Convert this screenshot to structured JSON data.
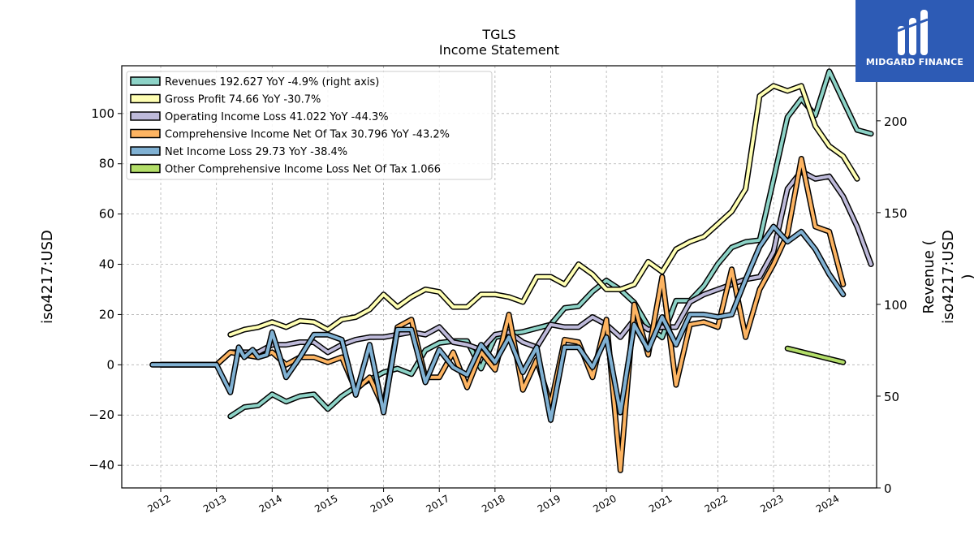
{
  "chart_data": {
    "type": "line",
    "title": "TGLS",
    "subtitle": "Income Statement",
    "ylabel": "iso4217:USD",
    "y2label": "Revenue (\niso4217:USD\n)",
    "ylim": [
      -49,
      119
    ],
    "y2lim": [
      0,
      230
    ],
    "xlim": [
      2011.3,
      2024.85
    ],
    "yticks": [
      -40,
      -20,
      0,
      20,
      40,
      60,
      80,
      100
    ],
    "y2ticks": [
      0,
      50,
      100,
      150,
      200
    ],
    "xticks": [
      "2012",
      "2013",
      "2014",
      "2015",
      "2016",
      "2017",
      "2018",
      "2019",
      "2020",
      "2021",
      "2022",
      "2023",
      "2024"
    ],
    "grid": true,
    "legend_position": "top-left",
    "series": [
      {
        "name": "Revenues  192.627 YoY -4.9% (right axis)",
        "color": "#8dd3c7",
        "axis": "right",
        "points": [
          [
            2013.25,
            39
          ],
          [
            2013.5,
            44
          ],
          [
            2013.75,
            45
          ],
          [
            2014.0,
            51
          ],
          [
            2014.25,
            47
          ],
          [
            2014.5,
            50
          ],
          [
            2014.75,
            51
          ],
          [
            2015.0,
            43
          ],
          [
            2015.25,
            50
          ],
          [
            2015.5,
            55
          ],
          [
            2015.75,
            59
          ],
          [
            2016.0,
            63
          ],
          [
            2016.25,
            65
          ],
          [
            2016.5,
            62
          ],
          [
            2016.75,
            75
          ],
          [
            2017.0,
            79
          ],
          [
            2017.25,
            80
          ],
          [
            2017.5,
            80
          ],
          [
            2017.75,
            65
          ],
          [
            2018.0,
            82
          ],
          [
            2018.25,
            84
          ],
          [
            2018.5,
            85
          ],
          [
            2018.75,
            87
          ],
          [
            2019.0,
            89
          ],
          [
            2019.25,
            98
          ],
          [
            2019.5,
            99
          ],
          [
            2019.75,
            107
          ],
          [
            2020.0,
            113
          ],
          [
            2020.25,
            108
          ],
          [
            2020.5,
            101
          ],
          [
            2020.75,
            88
          ],
          [
            2021.0,
            82
          ],
          [
            2021.25,
            102
          ],
          [
            2021.5,
            102
          ],
          [
            2021.75,
            110
          ],
          [
            2022.0,
            122
          ],
          [
            2022.25,
            131
          ],
          [
            2022.5,
            134
          ],
          [
            2022.75,
            135
          ],
          [
            2023.0,
            168
          ],
          [
            2023.25,
            202
          ],
          [
            2023.5,
            212
          ],
          [
            2023.75,
            203
          ],
          [
            2024.0,
            227
          ],
          [
            2024.25,
            211
          ],
          [
            2024.5,
            195
          ],
          [
            2024.75,
            193
          ]
        ]
      },
      {
        "name": "Gross Profit  74.66 YoY -30.7%",
        "color": "#ffffb3",
        "axis": "left",
        "points": [
          [
            2013.25,
            12
          ],
          [
            2013.5,
            14
          ],
          [
            2013.75,
            15
          ],
          [
            2014.0,
            17
          ],
          [
            2014.25,
            15
          ],
          [
            2014.5,
            17.5
          ],
          [
            2014.75,
            17
          ],
          [
            2015.0,
            14
          ],
          [
            2015.25,
            18
          ],
          [
            2015.5,
            19
          ],
          [
            2015.75,
            22
          ],
          [
            2016.0,
            28
          ],
          [
            2016.25,
            23
          ],
          [
            2016.5,
            27
          ],
          [
            2016.75,
            30
          ],
          [
            2017.0,
            29
          ],
          [
            2017.25,
            23
          ],
          [
            2017.5,
            23
          ],
          [
            2017.75,
            28
          ],
          [
            2018.0,
            28
          ],
          [
            2018.25,
            27
          ],
          [
            2018.5,
            25
          ],
          [
            2018.75,
            35
          ],
          [
            2019.0,
            35
          ],
          [
            2019.25,
            32
          ],
          [
            2019.5,
            40
          ],
          [
            2019.75,
            36
          ],
          [
            2020.0,
            30
          ],
          [
            2020.25,
            30
          ],
          [
            2020.5,
            32
          ],
          [
            2020.75,
            41
          ],
          [
            2021.0,
            37
          ],
          [
            2021.25,
            46
          ],
          [
            2021.5,
            49
          ],
          [
            2021.75,
            51
          ],
          [
            2022.0,
            56
          ],
          [
            2022.25,
            61
          ],
          [
            2022.5,
            70
          ],
          [
            2022.75,
            107
          ],
          [
            2023.0,
            111
          ],
          [
            2023.25,
            109
          ],
          [
            2023.5,
            111
          ],
          [
            2023.75,
            95
          ],
          [
            2024.0,
            87
          ],
          [
            2024.25,
            83
          ],
          [
            2024.5,
            74
          ]
        ]
      },
      {
        "name": "Operating Income Loss  41.022 YoY -44.3%",
        "color": "#bebada",
        "axis": "left",
        "points": [
          [
            2012.0,
            0
          ],
          [
            2012.5,
            0
          ],
          [
            2013.0,
            0
          ],
          [
            2013.25,
            5
          ],
          [
            2013.5,
            5
          ],
          [
            2013.75,
            5
          ],
          [
            2014.0,
            8
          ],
          [
            2014.25,
            8
          ],
          [
            2014.5,
            9
          ],
          [
            2014.75,
            9
          ],
          [
            2015.0,
            5
          ],
          [
            2015.25,
            8
          ],
          [
            2015.5,
            10
          ],
          [
            2015.75,
            11
          ],
          [
            2016.0,
            11
          ],
          [
            2016.25,
            12
          ],
          [
            2016.5,
            13
          ],
          [
            2016.75,
            12
          ],
          [
            2017.0,
            15
          ],
          [
            2017.25,
            9
          ],
          [
            2017.5,
            8
          ],
          [
            2017.75,
            6
          ],
          [
            2018.0,
            12
          ],
          [
            2018.25,
            13
          ],
          [
            2018.5,
            9
          ],
          [
            2018.75,
            7
          ],
          [
            2019.0,
            16
          ],
          [
            2019.25,
            15
          ],
          [
            2019.5,
            15
          ],
          [
            2019.75,
            19
          ],
          [
            2020.0,
            16
          ],
          [
            2020.25,
            11
          ],
          [
            2020.5,
            18
          ],
          [
            2020.75,
            14
          ],
          [
            2021.0,
            15
          ],
          [
            2021.25,
            15
          ],
          [
            2021.5,
            25
          ],
          [
            2021.75,
            28
          ],
          [
            2022.0,
            30
          ],
          [
            2022.25,
            32
          ],
          [
            2022.5,
            34
          ],
          [
            2022.75,
            35
          ],
          [
            2023.0,
            45
          ],
          [
            2023.25,
            70
          ],
          [
            2023.5,
            77
          ],
          [
            2023.75,
            74
          ],
          [
            2024.0,
            75
          ],
          [
            2024.25,
            67
          ],
          [
            2024.5,
            55
          ],
          [
            2024.75,
            40
          ]
        ]
      },
      {
        "name": "Comprehensive Income Net Of Tax  30.796 YoY -43.2%",
        "color": "#fdb462",
        "axis": "left",
        "points": [
          [
            2012.0,
            0
          ],
          [
            2012.5,
            0
          ],
          [
            2013.0,
            0
          ],
          [
            2013.25,
            5
          ],
          [
            2013.5,
            4
          ],
          [
            2013.75,
            3
          ],
          [
            2014.0,
            5
          ],
          [
            2014.25,
            0
          ],
          [
            2014.5,
            3
          ],
          [
            2014.75,
            3
          ],
          [
            2015.0,
            1
          ],
          [
            2015.25,
            3
          ],
          [
            2015.5,
            -10
          ],
          [
            2015.75,
            -5
          ],
          [
            2016.0,
            -17
          ],
          [
            2016.25,
            15
          ],
          [
            2016.5,
            18
          ],
          [
            2016.75,
            -5
          ],
          [
            2017.0,
            -5
          ],
          [
            2017.25,
            5
          ],
          [
            2017.5,
            -9
          ],
          [
            2017.75,
            5
          ],
          [
            2018.0,
            -2
          ],
          [
            2018.25,
            20
          ],
          [
            2018.5,
            -10
          ],
          [
            2018.75,
            2
          ],
          [
            2019.0,
            -16
          ],
          [
            2019.25,
            10
          ],
          [
            2019.5,
            9
          ],
          [
            2019.75,
            -5
          ],
          [
            2020.0,
            18
          ],
          [
            2020.25,
            -42
          ],
          [
            2020.5,
            24
          ],
          [
            2020.75,
            4
          ],
          [
            2021.0,
            35
          ],
          [
            2021.25,
            -8
          ],
          [
            2021.5,
            16
          ],
          [
            2021.75,
            17
          ],
          [
            2022.0,
            15
          ],
          [
            2022.25,
            38
          ],
          [
            2022.5,
            11
          ],
          [
            2022.75,
            30
          ],
          [
            2023.0,
            40
          ],
          [
            2023.25,
            52
          ],
          [
            2023.5,
            82
          ],
          [
            2023.75,
            55
          ],
          [
            2024.0,
            53
          ],
          [
            2024.25,
            32
          ]
        ]
      },
      {
        "name": "Net Income Loss  29.73 YoY -38.4%",
        "color": "#80b1d3",
        "axis": "left",
        "points": [
          [
            2011.85,
            0
          ],
          [
            2012.5,
            0
          ],
          [
            2013.0,
            0
          ],
          [
            2013.25,
            -11
          ],
          [
            2013.4,
            7
          ],
          [
            2013.5,
            3
          ],
          [
            2013.65,
            6
          ],
          [
            2013.75,
            3
          ],
          [
            2013.9,
            4
          ],
          [
            2014.0,
            13
          ],
          [
            2014.25,
            -5
          ],
          [
            2014.5,
            3
          ],
          [
            2014.75,
            12
          ],
          [
            2015.0,
            12
          ],
          [
            2015.25,
            10
          ],
          [
            2015.5,
            -12
          ],
          [
            2015.75,
            8
          ],
          [
            2016.0,
            -19
          ],
          [
            2016.25,
            14
          ],
          [
            2016.5,
            14
          ],
          [
            2016.75,
            -7
          ],
          [
            2017.0,
            6
          ],
          [
            2017.25,
            -1
          ],
          [
            2017.5,
            -4
          ],
          [
            2017.75,
            8
          ],
          [
            2018.0,
            1
          ],
          [
            2018.25,
            11
          ],
          [
            2018.5,
            -3
          ],
          [
            2018.75,
            7
          ],
          [
            2019.0,
            -22
          ],
          [
            2019.25,
            7
          ],
          [
            2019.5,
            7
          ],
          [
            2019.75,
            -1
          ],
          [
            2020.0,
            11
          ],
          [
            2020.25,
            -19
          ],
          [
            2020.5,
            16
          ],
          [
            2020.75,
            6
          ],
          [
            2021.0,
            19
          ],
          [
            2021.25,
            8
          ],
          [
            2021.5,
            20
          ],
          [
            2021.75,
            20
          ],
          [
            2022.0,
            19
          ],
          [
            2022.25,
            20
          ],
          [
            2022.5,
            34
          ],
          [
            2022.75,
            47
          ],
          [
            2023.0,
            55
          ],
          [
            2023.25,
            49
          ],
          [
            2023.5,
            53
          ],
          [
            2023.75,
            46
          ],
          [
            2024.0,
            36
          ],
          [
            2024.25,
            28
          ]
        ]
      },
      {
        "name": "Other Comprehensive Income Loss Net Of Tax  1.066",
        "color": "#b3de69",
        "axis": "left",
        "points": [
          [
            2023.25,
            6.5
          ],
          [
            2024.25,
            1
          ]
        ]
      }
    ]
  },
  "logo": {
    "text": "MIDGARD FINANCE"
  }
}
